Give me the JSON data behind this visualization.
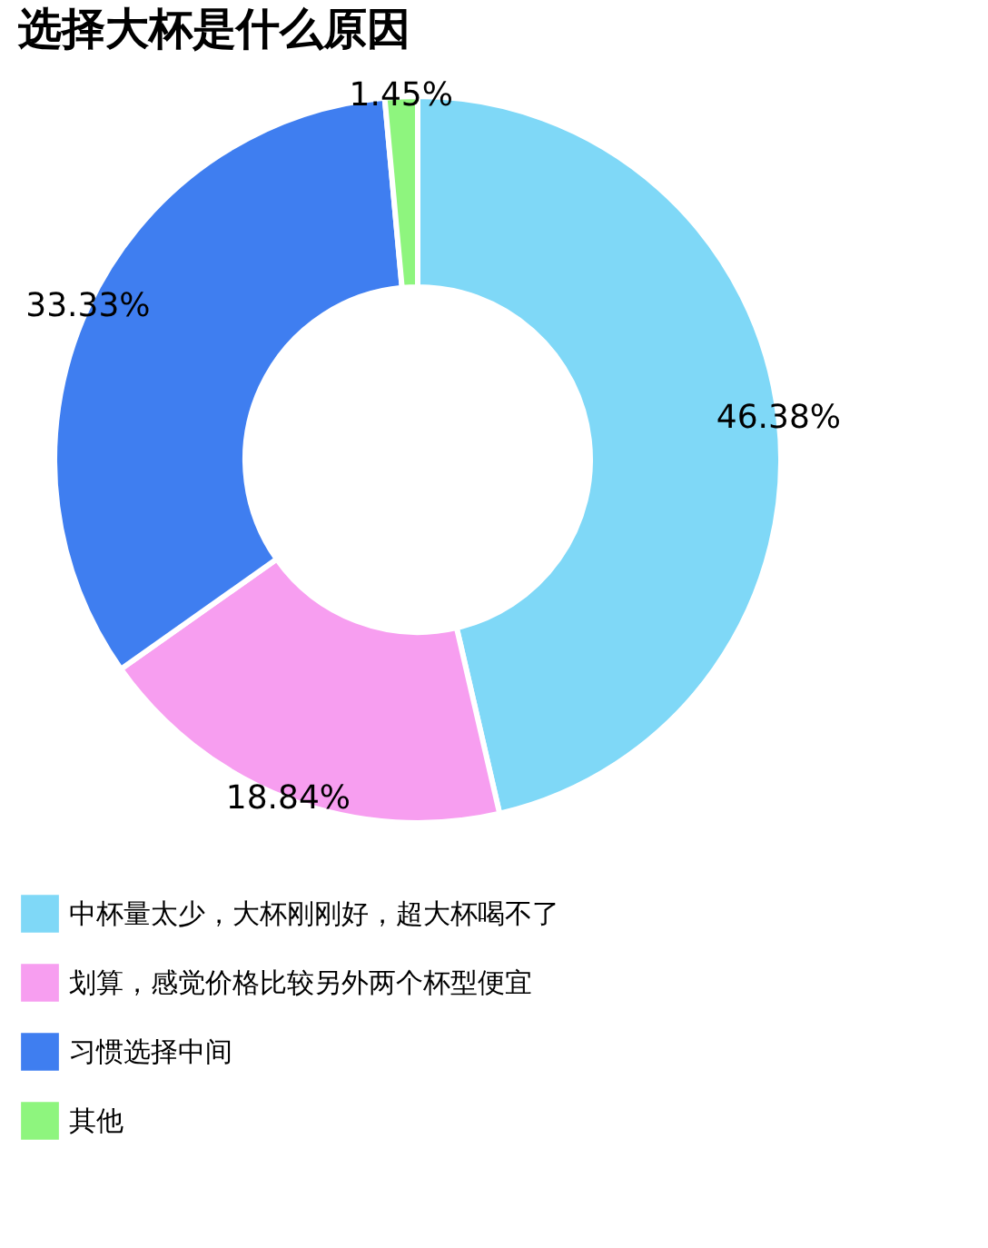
{
  "chart_data": {
    "type": "donut",
    "title": "选择大杯是什么原因",
    "categories": [
      "中杯量太少，大杯刚刚好，超大杯喝不了",
      "划算，感觉价格比较另外两个杯型便宜",
      "习惯选择中间",
      "其他"
    ],
    "values": [
      46.38,
      18.84,
      33.33,
      1.45
    ],
    "colors": [
      "#7fd8f7",
      "#f79ef0",
      "#3f7ef0",
      "#8ef57e"
    ],
    "value_labels": [
      "46.38%",
      "18.84%",
      "33.33%",
      "1.45%"
    ],
    "legend": "bottom"
  }
}
